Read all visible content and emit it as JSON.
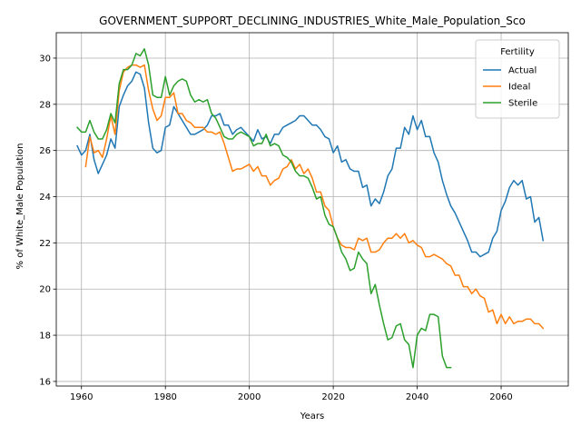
{
  "chart_data": {
    "type": "line",
    "title": "GOVERNMENT_SUPPORT_DECLINING_INDUSTRIES_White_Male_Population_Sco",
    "xlabel": "Years",
    "ylabel": "% of White_Male Population",
    "xlim": [
      1954,
      2076
    ],
    "ylim": [
      15.8,
      31.1
    ],
    "x_ticks": [
      1960,
      1980,
      2000,
      2020,
      2040,
      2060
    ],
    "y_ticks": [
      16,
      18,
      20,
      22,
      24,
      26,
      28,
      30
    ],
    "grid": true,
    "legend": {
      "title": "Fertility",
      "placement": "top-right"
    },
    "series": [
      {
        "name": "Actual",
        "color": "#1f77b4",
        "points": [
          [
            1959,
            26.2
          ],
          [
            1960,
            25.8
          ],
          [
            1961,
            26.0
          ],
          [
            1962,
            26.7
          ],
          [
            1963,
            25.6
          ],
          [
            1964,
            25.0
          ],
          [
            1965,
            25.4
          ],
          [
            1966,
            25.8
          ],
          [
            1967,
            26.5
          ],
          [
            1968,
            26.1
          ],
          [
            1969,
            27.9
          ],
          [
            1970,
            28.4
          ],
          [
            1971,
            28.8
          ],
          [
            1972,
            29.0
          ],
          [
            1973,
            29.4
          ],
          [
            1974,
            29.3
          ],
          [
            1975,
            28.7
          ],
          [
            1976,
            27.2
          ],
          [
            1977,
            26.1
          ],
          [
            1978,
            25.9
          ],
          [
            1979,
            26.0
          ],
          [
            1980,
            27.0
          ],
          [
            1981,
            27.1
          ],
          [
            1982,
            27.9
          ],
          [
            1983,
            27.6
          ],
          [
            1984,
            27.3
          ],
          [
            1985,
            27.0
          ],
          [
            1986,
            26.7
          ],
          [
            1987,
            26.7
          ],
          [
            1988,
            26.8
          ],
          [
            1989,
            26.9
          ],
          [
            1990,
            27.1
          ],
          [
            1991,
            27.5
          ],
          [
            1992,
            27.5
          ],
          [
            1993,
            27.6
          ],
          [
            1994,
            27.1
          ],
          [
            1995,
            27.1
          ],
          [
            1996,
            26.7
          ],
          [
            1997,
            26.9
          ],
          [
            1998,
            27.0
          ],
          [
            1999,
            26.8
          ],
          [
            2000,
            26.6
          ],
          [
            2001,
            26.4
          ],
          [
            2002,
            26.9
          ],
          [
            2003,
            26.5
          ],
          [
            2004,
            26.6
          ],
          [
            2005,
            26.3
          ],
          [
            2006,
            26.7
          ],
          [
            2007,
            26.7
          ],
          [
            2008,
            27.0
          ],
          [
            2009,
            27.1
          ],
          [
            2010,
            27.2
          ],
          [
            2011,
            27.3
          ],
          [
            2012,
            27.5
          ],
          [
            2013,
            27.5
          ],
          [
            2014,
            27.3
          ],
          [
            2015,
            27.1
          ],
          [
            2016,
            27.1
          ],
          [
            2017,
            26.9
          ],
          [
            2018,
            26.6
          ],
          [
            2019,
            26.5
          ],
          [
            2020,
            25.9
          ],
          [
            2021,
            26.2
          ],
          [
            2022,
            25.5
          ],
          [
            2023,
            25.6
          ],
          [
            2024,
            25.2
          ],
          [
            2025,
            25.1
          ],
          [
            2026,
            25.1
          ],
          [
            2027,
            24.4
          ],
          [
            2028,
            24.5
          ],
          [
            2029,
            23.6
          ],
          [
            2030,
            23.9
          ],
          [
            2031,
            23.7
          ],
          [
            2032,
            24.2
          ],
          [
            2033,
            24.9
          ],
          [
            2034,
            25.2
          ],
          [
            2035,
            26.1
          ],
          [
            2036,
            26.1
          ],
          [
            2037,
            27.0
          ],
          [
            2038,
            26.7
          ],
          [
            2039,
            27.5
          ],
          [
            2040,
            26.9
          ],
          [
            2041,
            27.3
          ],
          [
            2042,
            26.6
          ],
          [
            2043,
            26.6
          ],
          [
            2044,
            25.9
          ],
          [
            2045,
            25.5
          ],
          [
            2046,
            24.7
          ],
          [
            2047,
            24.1
          ],
          [
            2048,
            23.6
          ],
          [
            2049,
            23.3
          ],
          [
            2050,
            22.9
          ],
          [
            2051,
            22.5
          ],
          [
            2052,
            22.1
          ],
          [
            2053,
            21.6
          ],
          [
            2054,
            21.6
          ],
          [
            2055,
            21.4
          ],
          [
            2056,
            21.5
          ],
          [
            2057,
            21.6
          ],
          [
            2058,
            22.2
          ],
          [
            2059,
            22.5
          ],
          [
            2060,
            23.4
          ],
          [
            2061,
            23.8
          ],
          [
            2062,
            24.4
          ],
          [
            2063,
            24.7
          ],
          [
            2064,
            24.5
          ],
          [
            2065,
            24.7
          ],
          [
            2066,
            23.9
          ],
          [
            2067,
            24.0
          ],
          [
            2068,
            22.9
          ],
          [
            2069,
            23.1
          ],
          [
            2070,
            22.1
          ]
        ]
      },
      {
        "name": "Ideal",
        "color": "#ff7f0e",
        "points": [
          [
            1961,
            25.3
          ],
          [
            1962,
            26.6
          ],
          [
            1963,
            25.9
          ],
          [
            1964,
            26.0
          ],
          [
            1965,
            25.7
          ],
          [
            1966,
            26.5
          ],
          [
            1967,
            27.5
          ],
          [
            1968,
            26.7
          ],
          [
            1969,
            28.6
          ],
          [
            1970,
            29.4
          ],
          [
            1971,
            29.6
          ],
          [
            1972,
            29.7
          ],
          [
            1973,
            29.7
          ],
          [
            1974,
            29.6
          ],
          [
            1975,
            29.7
          ],
          [
            1976,
            28.6
          ],
          [
            1977,
            27.8
          ],
          [
            1978,
            27.3
          ],
          [
            1979,
            27.5
          ],
          [
            1980,
            28.3
          ],
          [
            1981,
            28.3
          ],
          [
            1982,
            28.5
          ],
          [
            1983,
            27.6
          ],
          [
            1984,
            27.6
          ],
          [
            1985,
            27.3
          ],
          [
            1986,
            27.2
          ],
          [
            1987,
            27.0
          ],
          [
            1988,
            27.0
          ],
          [
            1989,
            27.0
          ],
          [
            1990,
            26.8
          ],
          [
            1991,
            26.8
          ],
          [
            1992,
            26.7
          ],
          [
            1993,
            26.8
          ],
          [
            1994,
            26.3
          ],
          [
            1995,
            25.7
          ],
          [
            1996,
            25.1
          ],
          [
            1997,
            25.2
          ],
          [
            1998,
            25.2
          ],
          [
            1999,
            25.3
          ],
          [
            2000,
            25.4
          ],
          [
            2001,
            25.1
          ],
          [
            2002,
            25.3
          ],
          [
            2003,
            24.9
          ],
          [
            2004,
            24.9
          ],
          [
            2005,
            24.5
          ],
          [
            2006,
            24.7
          ],
          [
            2007,
            24.8
          ],
          [
            2008,
            25.2
          ],
          [
            2009,
            25.3
          ],
          [
            2010,
            25.6
          ],
          [
            2011,
            25.2
          ],
          [
            2012,
            25.4
          ],
          [
            2013,
            25.0
          ],
          [
            2014,
            25.2
          ],
          [
            2015,
            24.8
          ],
          [
            2016,
            24.2
          ],
          [
            2017,
            24.2
          ],
          [
            2018,
            23.6
          ],
          [
            2019,
            23.4
          ],
          [
            2020,
            22.7
          ],
          [
            2021,
            22.2
          ],
          [
            2022,
            21.9
          ],
          [
            2023,
            21.8
          ],
          [
            2024,
            21.8
          ],
          [
            2025,
            21.7
          ],
          [
            2026,
            22.2
          ],
          [
            2027,
            22.1
          ],
          [
            2028,
            22.2
          ],
          [
            2029,
            21.6
          ],
          [
            2030,
            21.6
          ],
          [
            2031,
            21.7
          ],
          [
            2032,
            22.0
          ],
          [
            2033,
            22.2
          ],
          [
            2034,
            22.2
          ],
          [
            2035,
            22.4
          ],
          [
            2036,
            22.2
          ],
          [
            2037,
            22.4
          ],
          [
            2038,
            22.0
          ],
          [
            2039,
            22.1
          ],
          [
            2040,
            21.9
          ],
          [
            2041,
            21.8
          ],
          [
            2042,
            21.4
          ],
          [
            2043,
            21.4
          ],
          [
            2044,
            21.5
          ],
          [
            2045,
            21.4
          ],
          [
            2046,
            21.3
          ],
          [
            2047,
            21.1
          ],
          [
            2048,
            21.0
          ],
          [
            2049,
            20.6
          ],
          [
            2050,
            20.6
          ],
          [
            2051,
            20.1
          ],
          [
            2052,
            20.1
          ],
          [
            2053,
            19.8
          ],
          [
            2054,
            20.0
          ],
          [
            2055,
            19.7
          ],
          [
            2056,
            19.6
          ],
          [
            2057,
            19.0
          ],
          [
            2058,
            19.1
          ],
          [
            2059,
            18.5
          ],
          [
            2060,
            18.9
          ],
          [
            2061,
            18.5
          ],
          [
            2062,
            18.8
          ],
          [
            2063,
            18.5
          ],
          [
            2064,
            18.6
          ],
          [
            2065,
            18.6
          ],
          [
            2066,
            18.7
          ],
          [
            2067,
            18.7
          ],
          [
            2068,
            18.5
          ],
          [
            2069,
            18.5
          ],
          [
            2070,
            18.3
          ]
        ]
      },
      {
        "name": "Sterile",
        "color": "#2ca02c",
        "points": [
          [
            1959,
            27.0
          ],
          [
            1960,
            26.8
          ],
          [
            1961,
            26.8
          ],
          [
            1962,
            27.3
          ],
          [
            1963,
            26.8
          ],
          [
            1964,
            26.5
          ],
          [
            1965,
            26.5
          ],
          [
            1966,
            26.9
          ],
          [
            1967,
            27.6
          ],
          [
            1968,
            27.2
          ],
          [
            1969,
            28.9
          ],
          [
            1970,
            29.5
          ],
          [
            1971,
            29.5
          ],
          [
            1972,
            29.7
          ],
          [
            1973,
            30.2
          ],
          [
            1974,
            30.1
          ],
          [
            1975,
            30.4
          ],
          [
            1976,
            29.7
          ],
          [
            1977,
            28.4
          ],
          [
            1978,
            28.3
          ],
          [
            1979,
            28.3
          ],
          [
            1980,
            29.2
          ],
          [
            1981,
            28.4
          ],
          [
            1982,
            28.8
          ],
          [
            1983,
            29.0
          ],
          [
            1984,
            29.1
          ],
          [
            1985,
            29.0
          ],
          [
            1986,
            28.4
          ],
          [
            1987,
            28.1
          ],
          [
            1988,
            28.2
          ],
          [
            1989,
            28.1
          ],
          [
            1990,
            28.2
          ],
          [
            1991,
            27.6
          ],
          [
            1992,
            27.4
          ],
          [
            1993,
            27.0
          ],
          [
            1994,
            26.6
          ],
          [
            1995,
            26.5
          ],
          [
            1996,
            26.5
          ],
          [
            1997,
            26.7
          ],
          [
            1998,
            26.8
          ],
          [
            1999,
            26.7
          ],
          [
            2000,
            26.6
          ],
          [
            2001,
            26.2
          ],
          [
            2002,
            26.3
          ],
          [
            2003,
            26.3
          ],
          [
            2004,
            26.7
          ],
          [
            2005,
            26.2
          ],
          [
            2006,
            26.3
          ],
          [
            2007,
            26.2
          ],
          [
            2008,
            25.8
          ],
          [
            2009,
            25.7
          ],
          [
            2010,
            25.5
          ],
          [
            2011,
            25.1
          ],
          [
            2012,
            24.9
          ],
          [
            2013,
            24.9
          ],
          [
            2014,
            24.8
          ],
          [
            2015,
            24.4
          ],
          [
            2016,
            23.9
          ],
          [
            2017,
            24.0
          ],
          [
            2018,
            23.2
          ],
          [
            2019,
            22.8
          ],
          [
            2020,
            22.7
          ],
          [
            2021,
            22.2
          ],
          [
            2022,
            21.6
          ],
          [
            2023,
            21.3
          ],
          [
            2024,
            20.8
          ],
          [
            2025,
            20.9
          ],
          [
            2026,
            21.6
          ],
          [
            2027,
            21.3
          ],
          [
            2028,
            21.1
          ],
          [
            2029,
            19.8
          ],
          [
            2030,
            20.2
          ],
          [
            2031,
            19.3
          ],
          [
            2032,
            18.5
          ],
          [
            2033,
            17.8
          ],
          [
            2034,
            17.9
          ],
          [
            2035,
            18.4
          ],
          [
            2036,
            18.5
          ],
          [
            2037,
            17.8
          ],
          [
            2038,
            17.6
          ],
          [
            2039,
            16.6
          ],
          [
            2040,
            18.0
          ],
          [
            2041,
            18.3
          ],
          [
            2042,
            18.2
          ],
          [
            2043,
            18.9
          ],
          [
            2044,
            18.9
          ],
          [
            2045,
            18.8
          ],
          [
            2046,
            17.1
          ],
          [
            2047,
            16.6
          ],
          [
            2048,
            16.6
          ]
        ]
      }
    ]
  }
}
